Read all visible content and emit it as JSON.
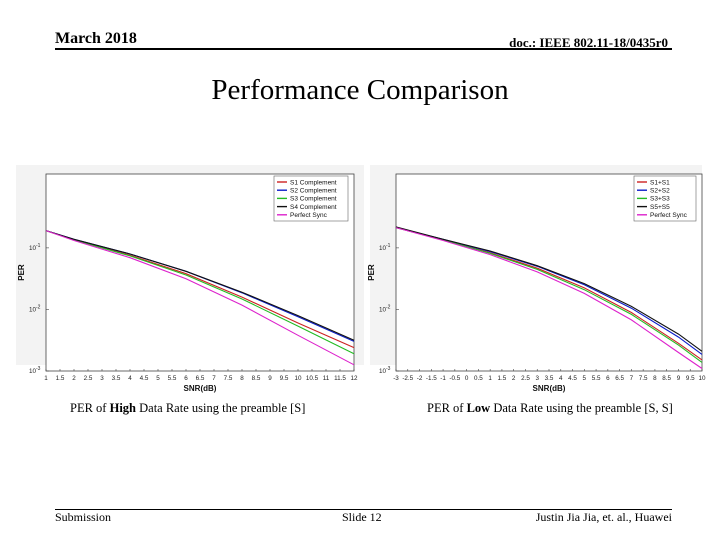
{
  "header": {
    "date": "March 2018",
    "doc_id": "doc.: IEEE 802.11-18/0435r0"
  },
  "title": "Performance Comparison",
  "footer": {
    "left": "Submission",
    "center": "Slide 12",
    "right": "Justin Jia Jia, et. al., Huawei"
  },
  "colors": {
    "c1": "#cc2222",
    "c2": "#0b1cc9",
    "c3": "#22bb22",
    "c4": "#111111",
    "c5": "#dd22cc"
  },
  "chart_data": [
    {
      "type": "line",
      "xlabel": "SNR(dB)",
      "ylabel": "PER",
      "xlim": [
        1,
        12
      ],
      "ylim_log10": [
        -3,
        0.2
      ],
      "y_ticks": [
        "10",
        "10",
        "10"
      ],
      "y_tick_exp": [
        "-1",
        "-2",
        "-3"
      ],
      "x_ticks": [
        "1",
        "1.5",
        "2",
        "2.5",
        "3",
        "3.5",
        "4",
        "4.5",
        "5",
        "5.5",
        "6",
        "6.5",
        "7",
        "7.5",
        "8",
        "8.5",
        "9",
        "9.5",
        "10",
        "10.5",
        "11",
        "11.5",
        "12"
      ],
      "caption": {
        "before": "PER of ",
        "bold": "High",
        "after": " Data Rate using the preamble [S]"
      },
      "series": [
        {
          "name": "S1 Complement",
          "color_key": "c1",
          "x": [
            1,
            2,
            4,
            6,
            8,
            10,
            12
          ],
          "log_y": [
            -0.72,
            -0.87,
            -1.12,
            -1.42,
            -1.8,
            -2.22,
            -2.62
          ]
        },
        {
          "name": "S2 Complement",
          "color_key": "c2",
          "x": [
            1,
            2,
            4,
            6,
            8,
            10,
            12
          ],
          "log_y": [
            -0.72,
            -0.86,
            -1.1,
            -1.38,
            -1.73,
            -2.12,
            -2.52
          ]
        },
        {
          "name": "S3 Complement",
          "color_key": "c3",
          "x": [
            1,
            2,
            4,
            6,
            8,
            10,
            12
          ],
          "log_y": [
            -0.72,
            -0.87,
            -1.13,
            -1.44,
            -1.83,
            -2.27,
            -2.72
          ]
        },
        {
          "name": "S4 Complement",
          "color_key": "c4",
          "x": [
            1,
            2,
            4,
            6,
            8,
            10,
            12
          ],
          "log_y": [
            -0.72,
            -0.86,
            -1.1,
            -1.38,
            -1.72,
            -2.1,
            -2.5
          ]
        },
        {
          "name": "Perfect Sync",
          "color_key": "c5",
          "x": [
            1,
            2,
            4,
            6,
            8,
            10,
            12
          ],
          "log_y": [
            -0.72,
            -0.88,
            -1.16,
            -1.5,
            -1.93,
            -2.42,
            -2.9
          ]
        }
      ]
    },
    {
      "type": "line",
      "xlabel": "SNR(dB)",
      "ylabel": "PER",
      "xlim": [
        -3,
        10
      ],
      "ylim_log10": [
        -3,
        0.2
      ],
      "y_ticks": [
        "10",
        "10",
        "10"
      ],
      "y_tick_exp": [
        "-1",
        "-2",
        "-3"
      ],
      "x_ticks": [
        "-3",
        "-2.5",
        "-2",
        "-1.5",
        "-1",
        "-0.5",
        "0",
        "0.5",
        "1",
        "1.5",
        "2",
        "2.5",
        "3",
        "3.5",
        "4",
        "4.5",
        "5",
        "5.5",
        "6",
        "6.5",
        "7",
        "7.5",
        "8",
        "8.5",
        "9",
        "9.5",
        "10"
      ],
      "caption": {
        "before": "PER of ",
        "bold": "Low",
        "after": " Data Rate using the preamble [S, S]"
      },
      "series": [
        {
          "name": "S1+S1",
          "color_key": "c1",
          "x": [
            -3,
            -1,
            1,
            3,
            5,
            7,
            9,
            10
          ],
          "log_y": [
            -0.67,
            -0.87,
            -1.08,
            -1.33,
            -1.65,
            -2.05,
            -2.55,
            -2.82
          ]
        },
        {
          "name": "S2+S2",
          "color_key": "c2",
          "x": [
            -3,
            -1,
            1,
            3,
            5,
            7,
            9,
            10
          ],
          "log_y": [
            -0.67,
            -0.86,
            -1.06,
            -1.3,
            -1.6,
            -1.98,
            -2.45,
            -2.73
          ]
        },
        {
          "name": "S3+S3",
          "color_key": "c3",
          "x": [
            -3,
            -1,
            1,
            3,
            5,
            7,
            9,
            10
          ],
          "log_y": [
            -0.67,
            -0.87,
            -1.09,
            -1.35,
            -1.68,
            -2.08,
            -2.58,
            -2.86
          ]
        },
        {
          "name": "S5+S5",
          "color_key": "c4",
          "x": [
            -3,
            -1,
            1,
            3,
            5,
            7,
            9,
            10
          ],
          "log_y": [
            -0.66,
            -0.86,
            -1.05,
            -1.29,
            -1.58,
            -1.95,
            -2.4,
            -2.68
          ]
        },
        {
          "name": "Perfect Sync",
          "color_key": "c5",
          "x": [
            -3,
            -1,
            1,
            3,
            5,
            7,
            9,
            10
          ],
          "log_y": [
            -0.67,
            -0.88,
            -1.11,
            -1.39,
            -1.74,
            -2.17,
            -2.7,
            -2.96
          ]
        }
      ]
    }
  ]
}
